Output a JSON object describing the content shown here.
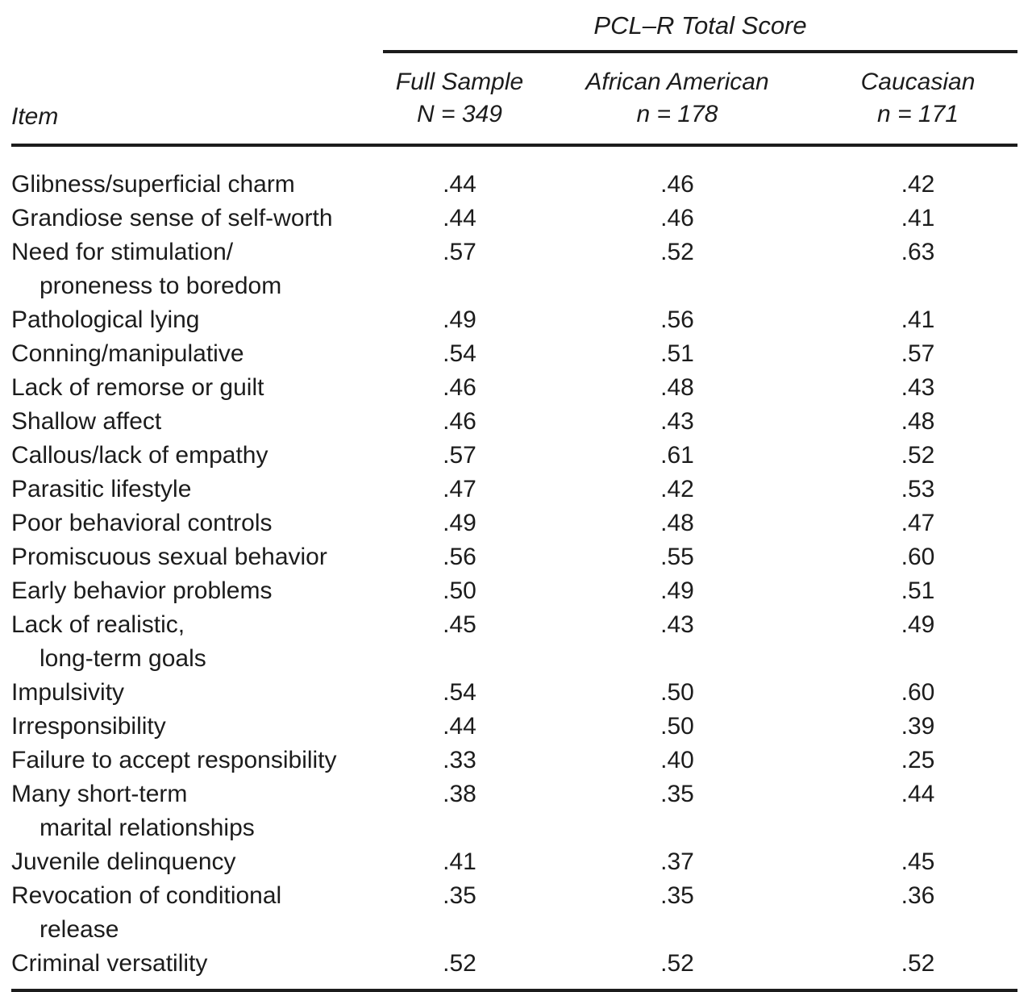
{
  "page": {
    "background_color": "#ffffff",
    "text_color": "#1c1c1c",
    "rule_color": "#1c1c1c"
  },
  "chart_data": {
    "type": "table",
    "title": "PCL–R Total Score",
    "item_column_header": "Item",
    "group_columns": [
      {
        "label": "Full Sample",
        "sample": "N = 349"
      },
      {
        "label": "African American",
        "sample": "n = 178"
      },
      {
        "label": "Caucasian",
        "sample": "n = 171"
      }
    ],
    "rows": [
      {
        "item_lines": [
          "Glibness/superficial charm"
        ],
        "values": [
          ".44",
          ".46",
          ".42"
        ]
      },
      {
        "item_lines": [
          "Grandiose sense of self-worth"
        ],
        "values": [
          ".44",
          ".46",
          ".41"
        ]
      },
      {
        "item_lines": [
          "Need for stimulation/",
          "proneness to boredom"
        ],
        "values": [
          ".57",
          ".52",
          ".63"
        ]
      },
      {
        "item_lines": [
          "Pathological lying"
        ],
        "values": [
          ".49",
          ".56",
          ".41"
        ]
      },
      {
        "item_lines": [
          "Conning/manipulative"
        ],
        "values": [
          ".54",
          ".51",
          ".57"
        ]
      },
      {
        "item_lines": [
          "Lack of remorse or guilt"
        ],
        "values": [
          ".46",
          ".48",
          ".43"
        ]
      },
      {
        "item_lines": [
          "Shallow affect"
        ],
        "values": [
          ".46",
          ".43",
          ".48"
        ]
      },
      {
        "item_lines": [
          "Callous/lack of empathy"
        ],
        "values": [
          ".57",
          ".61",
          ".52"
        ]
      },
      {
        "item_lines": [
          "Parasitic lifestyle"
        ],
        "values": [
          ".47",
          ".42",
          ".53"
        ]
      },
      {
        "item_lines": [
          "Poor behavioral controls"
        ],
        "values": [
          ".49",
          ".48",
          ".47"
        ]
      },
      {
        "item_lines": [
          "Promiscuous sexual behavior"
        ],
        "values": [
          ".56",
          ".55",
          ".60"
        ]
      },
      {
        "item_lines": [
          "Early behavior problems"
        ],
        "values": [
          ".50",
          ".49",
          ".51"
        ]
      },
      {
        "item_lines": [
          "Lack of realistic,",
          "long-term goals"
        ],
        "values": [
          ".45",
          ".43",
          ".49"
        ]
      },
      {
        "item_lines": [
          "Impulsivity"
        ],
        "values": [
          ".54",
          ".50",
          ".60"
        ]
      },
      {
        "item_lines": [
          "Irresponsibility"
        ],
        "values": [
          ".44",
          ".50",
          ".39"
        ]
      },
      {
        "item_lines": [
          "Failure to accept responsibility"
        ],
        "values": [
          ".33",
          ".40",
          ".25"
        ]
      },
      {
        "item_lines": [
          "Many short-term",
          "marital relationships"
        ],
        "values": [
          ".38",
          ".35",
          ".44"
        ]
      },
      {
        "item_lines": [
          "Juvenile delinquency"
        ],
        "values": [
          ".41",
          ".37",
          ".45"
        ]
      },
      {
        "item_lines": [
          "Revocation of conditional",
          "release"
        ],
        "values": [
          ".35",
          ".35",
          ".36"
        ]
      },
      {
        "item_lines": [
          "Criminal versatility"
        ],
        "values": [
          ".52",
          ".52",
          ".52"
        ]
      }
    ]
  }
}
